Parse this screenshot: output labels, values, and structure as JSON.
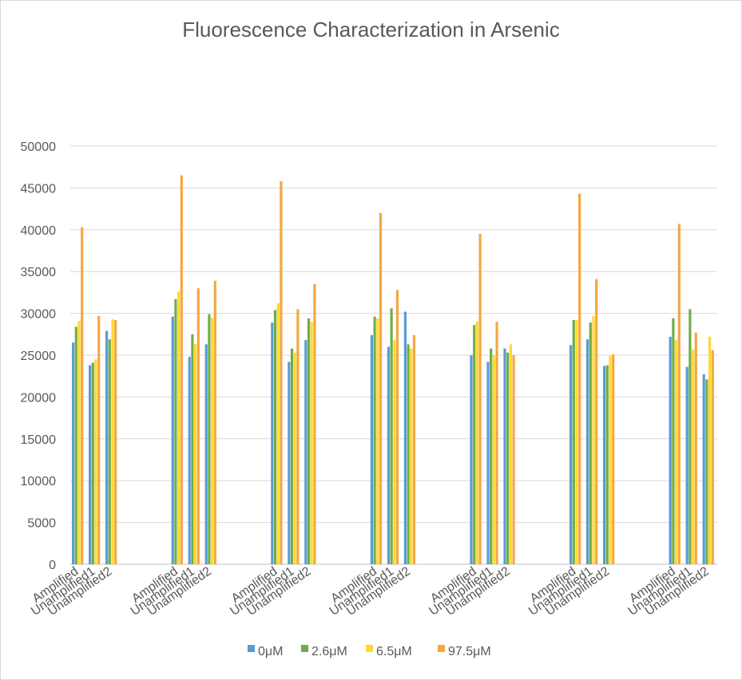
{
  "chart_data": {
    "type": "bar",
    "title": "Fluorescence Characterization in Arsenic",
    "xlabel": "",
    "ylabel": "",
    "ylim": [
      0,
      50000
    ],
    "yticks": [
      0,
      5000,
      10000,
      15000,
      20000,
      25000,
      30000,
      35000,
      40000,
      45000,
      50000
    ],
    "grid": true,
    "legend_position": "bottom",
    "subcategories": [
      "Amplified",
      "Unamplified1",
      "Unamplified2"
    ],
    "group_count": 7,
    "series": [
      {
        "name": "0μM",
        "color": "#5b9bd5",
        "values": [
          [
            26500,
            23800,
            27900
          ],
          [
            29600,
            24800,
            26300
          ],
          [
            28900,
            24200,
            26800
          ],
          [
            27400,
            26000,
            30200
          ],
          [
            25000,
            24200,
            25800
          ],
          [
            26200,
            26900,
            23700
          ],
          [
            27200,
            23600,
            22700
          ]
        ]
      },
      {
        "name": "2.6μM",
        "color": "#70ad47",
        "values": [
          [
            28400,
            24100,
            26900
          ],
          [
            31700,
            27500,
            29900
          ],
          [
            30400,
            25800,
            29400
          ],
          [
            29600,
            30600,
            26300
          ],
          [
            28600,
            25800,
            25300
          ],
          [
            29200,
            28900,
            23800
          ],
          [
            29400,
            30500,
            22100
          ]
        ]
      },
      {
        "name": "6.5μM",
        "color": "#ffd92f",
        "values": [
          [
            29100,
            24500,
            29300
          ],
          [
            32600,
            26300,
            29500
          ],
          [
            31200,
            25300,
            29000
          ],
          [
            29400,
            26800,
            25800
          ],
          [
            29000,
            25000,
            26300
          ],
          [
            29200,
            29700,
            24900
          ],
          [
            26800,
            25700,
            27200
          ]
        ]
      },
      {
        "name": "97.5μM",
        "color": "#f5a742",
        "values": [
          [
            40300,
            29700,
            29200
          ],
          [
            46500,
            33000,
            33900
          ],
          [
            45800,
            30500,
            33500
          ],
          [
            42000,
            32800,
            27400
          ],
          [
            39500,
            29000,
            25000
          ],
          [
            44300,
            34100,
            25100
          ],
          [
            40700,
            27700,
            25600
          ]
        ]
      }
    ]
  }
}
